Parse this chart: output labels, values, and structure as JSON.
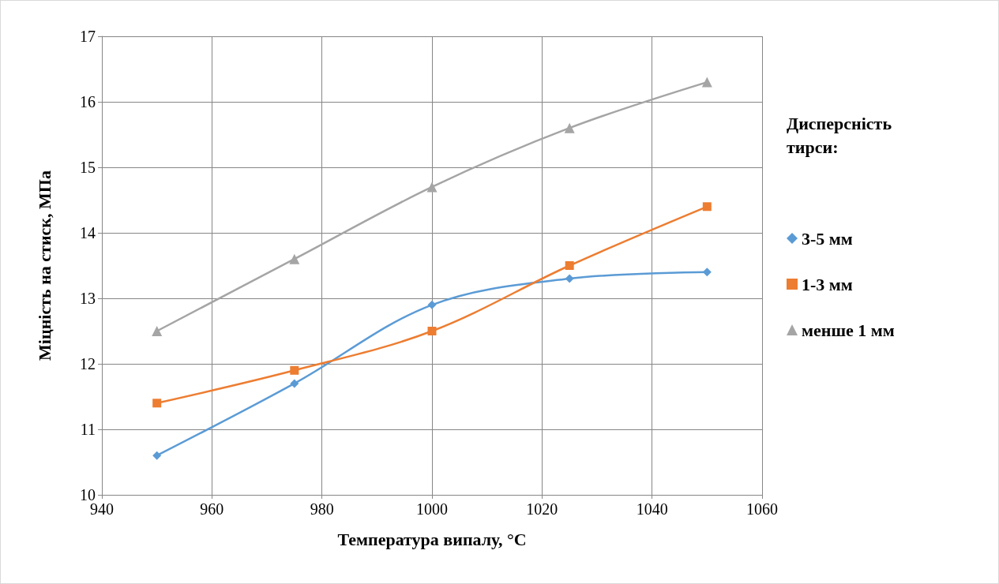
{
  "chart_data": {
    "type": "line",
    "xlabel": "Температура випалу, °C",
    "ylabel": "Міцність на стиск, МПа",
    "legend_title": "Дисперсність тирси:",
    "x": [
      950,
      975,
      1000,
      1025,
      1050
    ],
    "series": [
      {
        "name": "3-5 мм",
        "color": "#5b9bd5",
        "marker": "diamond",
        "values": [
          10.6,
          11.7,
          12.9,
          13.3,
          13.4
        ]
      },
      {
        "name": "1-3 мм",
        "color": "#ed7d31",
        "marker": "square",
        "values": [
          11.4,
          11.9,
          12.5,
          13.5,
          14.4
        ]
      },
      {
        "name": "менше 1 мм",
        "color": "#a5a5a5",
        "marker": "triangle",
        "values": [
          12.5,
          13.6,
          14.7,
          15.6,
          16.3
        ]
      }
    ],
    "xlim": [
      940,
      1060
    ],
    "xticks": [
      940,
      960,
      980,
      1000,
      1020,
      1040,
      1060
    ],
    "ylim": [
      10,
      17
    ],
    "yticks": [
      10,
      11,
      12,
      13,
      14,
      15,
      16,
      17
    ],
    "grid": true,
    "legend": "right",
    "line_style": "solid"
  }
}
